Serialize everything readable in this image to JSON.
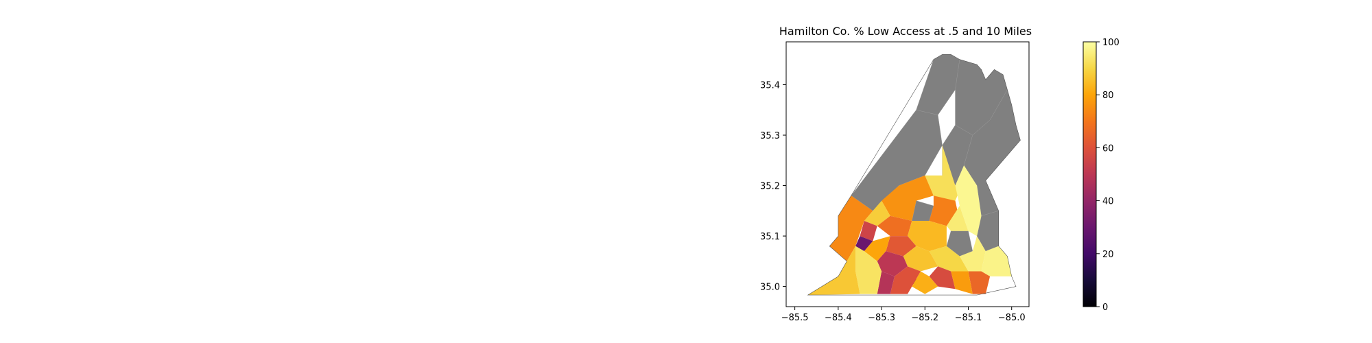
{
  "map": {
    "title": "Hamilton Co. % Low Access at .5 and 10 Miles",
    "no_data_color": "#808080",
    "background": "#ffffff",
    "x_axis": {
      "range": [
        -85.52,
        -84.96
      ],
      "ticks": [
        {
          "value": -85.5,
          "label": "−85.5"
        },
        {
          "value": -85.4,
          "label": "−85.4"
        },
        {
          "value": -85.3,
          "label": "−85.3"
        },
        {
          "value": -85.2,
          "label": "−85.2"
        },
        {
          "value": -85.1,
          "label": "−85.1"
        },
        {
          "value": -85.0,
          "label": "−85.0"
        }
      ]
    },
    "y_axis": {
      "range": [
        34.96,
        35.485
      ],
      "ticks": [
        {
          "value": 35.0,
          "label": "35.0"
        },
        {
          "value": 35.1,
          "label": "35.1"
        },
        {
          "value": 35.2,
          "label": "35.2"
        },
        {
          "value": 35.3,
          "label": "35.3"
        },
        {
          "value": 35.4,
          "label": "35.4"
        }
      ]
    },
    "colorbar": {
      "colormap": "inferno",
      "min": 0,
      "max": 100,
      "ticks": [
        {
          "value": 0,
          "label": "0"
        },
        {
          "value": 20,
          "label": "20"
        },
        {
          "value": 40,
          "label": "40"
        },
        {
          "value": 60,
          "label": "60"
        },
        {
          "value": 80,
          "label": "80"
        },
        {
          "value": 100,
          "label": "100"
        }
      ]
    },
    "county_outline": [
      [
        -85.47,
        34.983
      ],
      [
        -85.08,
        34.983
      ],
      [
        -84.99,
        35.0
      ],
      [
        -85.0,
        35.02
      ],
      [
        -85.01,
        35.06
      ],
      [
        -85.03,
        35.08
      ],
      [
        -85.03,
        35.15
      ],
      [
        -85.06,
        35.21
      ],
      [
        -84.98,
        35.29
      ],
      [
        -84.99,
        35.32
      ],
      [
        -85.0,
        35.36
      ],
      [
        -85.01,
        35.39
      ],
      [
        -85.02,
        35.42
      ],
      [
        -85.04,
        35.43
      ],
      [
        -85.06,
        35.41
      ],
      [
        -85.07,
        35.43
      ],
      [
        -85.08,
        35.44
      ],
      [
        -85.12,
        35.45
      ],
      [
        -85.14,
        35.46
      ],
      [
        -85.16,
        35.46
      ],
      [
        -85.18,
        35.45
      ],
      [
        -85.37,
        35.18
      ],
      [
        -85.4,
        35.14
      ],
      [
        -85.4,
        35.1
      ],
      [
        -85.42,
        35.08
      ],
      [
        -85.38,
        35.05
      ],
      [
        -85.4,
        35.02
      ]
    ],
    "tracts": [
      {
        "name": "north-1",
        "value": null,
        "points": [
          [
            -85.18,
            35.45
          ],
          [
            -85.16,
            35.46
          ],
          [
            -85.14,
            35.46
          ],
          [
            -85.12,
            35.45
          ],
          [
            -85.13,
            35.39
          ],
          [
            -85.17,
            35.34
          ],
          [
            -85.22,
            35.35
          ]
        ]
      },
      {
        "name": "north-2",
        "value": null,
        "points": [
          [
            -85.12,
            35.45
          ],
          [
            -85.08,
            35.44
          ],
          [
            -85.07,
            35.43
          ],
          [
            -85.06,
            35.41
          ],
          [
            -85.04,
            35.43
          ],
          [
            -85.02,
            35.42
          ],
          [
            -85.01,
            35.39
          ],
          [
            -85.05,
            35.33
          ],
          [
            -85.09,
            35.3
          ],
          [
            -85.13,
            35.32
          ],
          [
            -85.13,
            35.39
          ]
        ]
      },
      {
        "name": "northwest-ridge",
        "value": null,
        "points": [
          [
            -85.22,
            35.35
          ],
          [
            -85.17,
            35.34
          ],
          [
            -85.16,
            35.28
          ],
          [
            -85.2,
            35.22
          ],
          [
            -85.26,
            35.2
          ],
          [
            -85.32,
            35.15
          ],
          [
            -85.37,
            35.18
          ]
        ]
      },
      {
        "name": "east-ridge",
        "value": null,
        "points": [
          [
            -85.01,
            35.39
          ],
          [
            -85.0,
            35.36
          ],
          [
            -84.99,
            35.32
          ],
          [
            -84.98,
            35.29
          ],
          [
            -85.06,
            35.21
          ],
          [
            -85.03,
            35.15
          ],
          [
            -85.07,
            35.14
          ],
          [
            -85.08,
            35.2
          ],
          [
            -85.11,
            35.24
          ],
          [
            -85.09,
            35.3
          ],
          [
            -85.05,
            35.33
          ]
        ]
      },
      {
        "name": "central-north",
        "value": null,
        "points": [
          [
            -85.16,
            35.28
          ],
          [
            -85.13,
            35.32
          ],
          [
            -85.09,
            35.3
          ],
          [
            -85.11,
            35.24
          ],
          [
            -85.13,
            35.2
          ],
          [
            -85.16,
            35.22
          ]
        ]
      },
      {
        "name": "east-middle",
        "value": null,
        "points": [
          [
            -85.07,
            35.14
          ],
          [
            -85.03,
            35.15
          ],
          [
            -85.03,
            35.08
          ],
          [
            -85.06,
            35.07
          ],
          [
            -85.08,
            35.1
          ]
        ]
      },
      {
        "name": "central-gray",
        "value": null,
        "points": [
          [
            -85.14,
            35.11
          ],
          [
            -85.1,
            35.11
          ],
          [
            -85.09,
            35.07
          ],
          [
            -85.12,
            35.06
          ],
          [
            -85.15,
            35.08
          ]
        ]
      },
      {
        "name": "central-gray-2",
        "value": null,
        "points": [
          [
            -85.22,
            35.17
          ],
          [
            -85.18,
            35.16
          ],
          [
            -85.19,
            35.13
          ],
          [
            -85.23,
            35.13
          ]
        ]
      },
      {
        "name": "tract-a",
        "value": 92,
        "points": [
          [
            -85.2,
            35.22
          ],
          [
            -85.16,
            35.22
          ],
          [
            -85.16,
            35.28
          ],
          [
            -85.13,
            35.2
          ],
          [
            -85.1,
            35.23
          ],
          [
            -85.13,
            35.17
          ],
          [
            -85.17,
            35.16
          ]
        ]
      },
      {
        "name": "tract-b",
        "value": 98,
        "points": [
          [
            -85.13,
            35.2
          ],
          [
            -85.11,
            35.24
          ],
          [
            -85.08,
            35.2
          ],
          [
            -85.07,
            35.14
          ],
          [
            -85.08,
            35.1
          ],
          [
            -85.1,
            35.11
          ],
          [
            -85.12,
            35.16
          ]
        ]
      },
      {
        "name": "tract-c",
        "value": 76,
        "points": [
          [
            -85.26,
            35.2
          ],
          [
            -85.2,
            35.22
          ],
          [
            -85.18,
            35.18
          ],
          [
            -85.22,
            35.17
          ],
          [
            -85.23,
            35.13
          ],
          [
            -85.28,
            35.14
          ],
          [
            -85.3,
            35.17
          ]
        ]
      },
      {
        "name": "tract-d",
        "value": 88,
        "points": [
          [
            -85.32,
            35.15
          ],
          [
            -85.3,
            35.17
          ],
          [
            -85.28,
            35.14
          ],
          [
            -85.31,
            35.12
          ],
          [
            -85.34,
            35.13
          ]
        ]
      },
      {
        "name": "tract-e",
        "value": 72,
        "points": [
          [
            -85.18,
            35.18
          ],
          [
            -85.13,
            35.17
          ],
          [
            -85.12,
            35.13
          ],
          [
            -85.15,
            35.12
          ],
          [
            -85.19,
            35.13
          ],
          [
            -85.18,
            35.16
          ]
        ]
      },
      {
        "name": "tract-f",
        "value": 95,
        "points": [
          [
            -85.12,
            35.16
          ],
          [
            -85.1,
            35.11
          ],
          [
            -85.14,
            35.11
          ],
          [
            -85.15,
            35.12
          ]
        ]
      },
      {
        "name": "tract-g",
        "value": 68,
        "points": [
          [
            -85.28,
            35.14
          ],
          [
            -85.23,
            35.13
          ],
          [
            -85.24,
            35.1
          ],
          [
            -85.28,
            35.1
          ],
          [
            -85.31,
            35.12
          ]
        ]
      },
      {
        "name": "tract-h",
        "value": 55,
        "points": [
          [
            -85.34,
            35.13
          ],
          [
            -85.31,
            35.12
          ],
          [
            -85.32,
            35.09
          ],
          [
            -85.35,
            35.1
          ]
        ]
      },
      {
        "name": "tract-i",
        "value": 30,
        "points": [
          [
            -85.35,
            35.1
          ],
          [
            -85.32,
            35.09
          ],
          [
            -85.34,
            35.07
          ],
          [
            -85.36,
            35.08
          ]
        ]
      },
      {
        "name": "tract-j",
        "value": 74,
        "points": [
          [
            -85.4,
            35.14
          ],
          [
            -85.37,
            35.18
          ],
          [
            -85.32,
            35.15
          ],
          [
            -85.34,
            35.13
          ],
          [
            -85.36,
            35.08
          ],
          [
            -85.38,
            35.05
          ],
          [
            -85.42,
            35.08
          ],
          [
            -85.4,
            35.1
          ]
        ]
      },
      {
        "name": "tract-k",
        "value": 84,
        "points": [
          [
            -85.24,
            35.1
          ],
          [
            -85.23,
            35.13
          ],
          [
            -85.19,
            35.13
          ],
          [
            -85.15,
            35.12
          ],
          [
            -85.15,
            35.08
          ],
          [
            -85.19,
            35.07
          ],
          [
            -85.22,
            35.08
          ]
        ]
      },
      {
        "name": "tract-l",
        "value": 62,
        "points": [
          [
            -85.28,
            35.1
          ],
          [
            -85.24,
            35.1
          ],
          [
            -85.22,
            35.08
          ],
          [
            -85.25,
            35.06
          ],
          [
            -85.29,
            35.07
          ]
        ]
      },
      {
        "name": "tract-m",
        "value": 80,
        "points": [
          [
            -85.32,
            35.09
          ],
          [
            -85.28,
            35.1
          ],
          [
            -85.29,
            35.07
          ],
          [
            -85.31,
            35.05
          ],
          [
            -85.34,
            35.07
          ]
        ]
      },
      {
        "name": "tract-n",
        "value": 96,
        "points": [
          [
            -85.12,
            35.06
          ],
          [
            -85.09,
            35.07
          ],
          [
            -85.08,
            35.1
          ],
          [
            -85.06,
            35.07
          ],
          [
            -85.07,
            35.03
          ],
          [
            -85.1,
            35.03
          ]
        ]
      },
      {
        "name": "tract-o",
        "value": 90,
        "points": [
          [
            -85.19,
            35.07
          ],
          [
            -85.15,
            35.08
          ],
          [
            -85.12,
            35.06
          ],
          [
            -85.1,
            35.03
          ],
          [
            -85.14,
            35.03
          ],
          [
            -85.17,
            35.04
          ]
        ]
      },
      {
        "name": "tract-p",
        "value": 86,
        "points": [
          [
            -85.25,
            35.06
          ],
          [
            -85.22,
            35.08
          ],
          [
            -85.19,
            35.07
          ],
          [
            -85.17,
            35.04
          ],
          [
            -85.21,
            35.03
          ],
          [
            -85.24,
            35.04
          ]
        ]
      },
      {
        "name": "tract-q",
        "value": 50,
        "points": [
          [
            -85.31,
            35.05
          ],
          [
            -85.29,
            35.07
          ],
          [
            -85.25,
            35.06
          ],
          [
            -85.24,
            35.04
          ],
          [
            -85.27,
            35.02
          ],
          [
            -85.3,
            35.03
          ]
        ]
      },
      {
        "name": "tract-r",
        "value": 97,
        "points": [
          [
            -85.06,
            35.07
          ],
          [
            -85.03,
            35.08
          ],
          [
            -85.01,
            35.06
          ],
          [
            -85.0,
            35.02
          ],
          [
            -85.05,
            35.02
          ],
          [
            -85.07,
            35.03
          ]
        ]
      },
      {
        "name": "tract-s",
        "value": 66,
        "points": [
          [
            -85.1,
            35.03
          ],
          [
            -85.07,
            35.03
          ],
          [
            -85.05,
            35.02
          ],
          [
            -85.06,
            34.985
          ],
          [
            -85.09,
            34.985
          ]
        ]
      },
      {
        "name": "tract-t",
        "value": 58,
        "points": [
          [
            -85.17,
            35.04
          ],
          [
            -85.14,
            35.03
          ],
          [
            -85.13,
            34.995
          ],
          [
            -85.17,
            35.0
          ],
          [
            -85.19,
            35.02
          ]
        ]
      },
      {
        "name": "tract-u",
        "value": 78,
        "points": [
          [
            -85.14,
            35.03
          ],
          [
            -85.1,
            35.03
          ],
          [
            -85.09,
            34.985
          ],
          [
            -85.13,
            34.995
          ]
        ]
      },
      {
        "name": "tract-v",
        "value": 10,
        "points": [
          [
            -85.24,
            35.015
          ],
          [
            -85.21,
            35.015
          ],
          [
            -85.21,
            35.005
          ],
          [
            -85.24,
            35.005
          ]
        ]
      },
      {
        "name": "tract-w",
        "value": 82,
        "points": [
          [
            -85.21,
            35.03
          ],
          [
            -85.19,
            35.02
          ],
          [
            -85.17,
            35.0
          ],
          [
            -85.2,
            34.985
          ],
          [
            -85.23,
            35.0
          ]
        ]
      },
      {
        "name": "tract-x",
        "value": 60,
        "points": [
          [
            -85.27,
            35.02
          ],
          [
            -85.24,
            35.04
          ],
          [
            -85.21,
            35.03
          ],
          [
            -85.23,
            35.0
          ],
          [
            -85.24,
            34.985
          ],
          [
            -85.28,
            34.985
          ]
        ]
      },
      {
        "name": "tract-y",
        "value": 48,
        "points": [
          [
            -85.3,
            35.03
          ],
          [
            -85.27,
            35.02
          ],
          [
            -85.28,
            34.985
          ],
          [
            -85.31,
            34.985
          ]
        ]
      },
      {
        "name": "tract-z",
        "value": 93,
        "points": [
          [
            -85.34,
            35.07
          ],
          [
            -85.31,
            35.05
          ],
          [
            -85.3,
            35.03
          ],
          [
            -85.31,
            34.985
          ],
          [
            -85.35,
            34.985
          ],
          [
            -85.36,
            35.03
          ],
          [
            -85.36,
            35.08
          ]
        ]
      },
      {
        "name": "tract-sw",
        "value": 87,
        "points": [
          [
            -85.38,
            35.05
          ],
          [
            -85.36,
            35.08
          ],
          [
            -85.36,
            35.03
          ],
          [
            -85.35,
            34.985
          ],
          [
            -85.47,
            34.983
          ],
          [
            -85.4,
            35.02
          ]
        ]
      }
    ]
  }
}
